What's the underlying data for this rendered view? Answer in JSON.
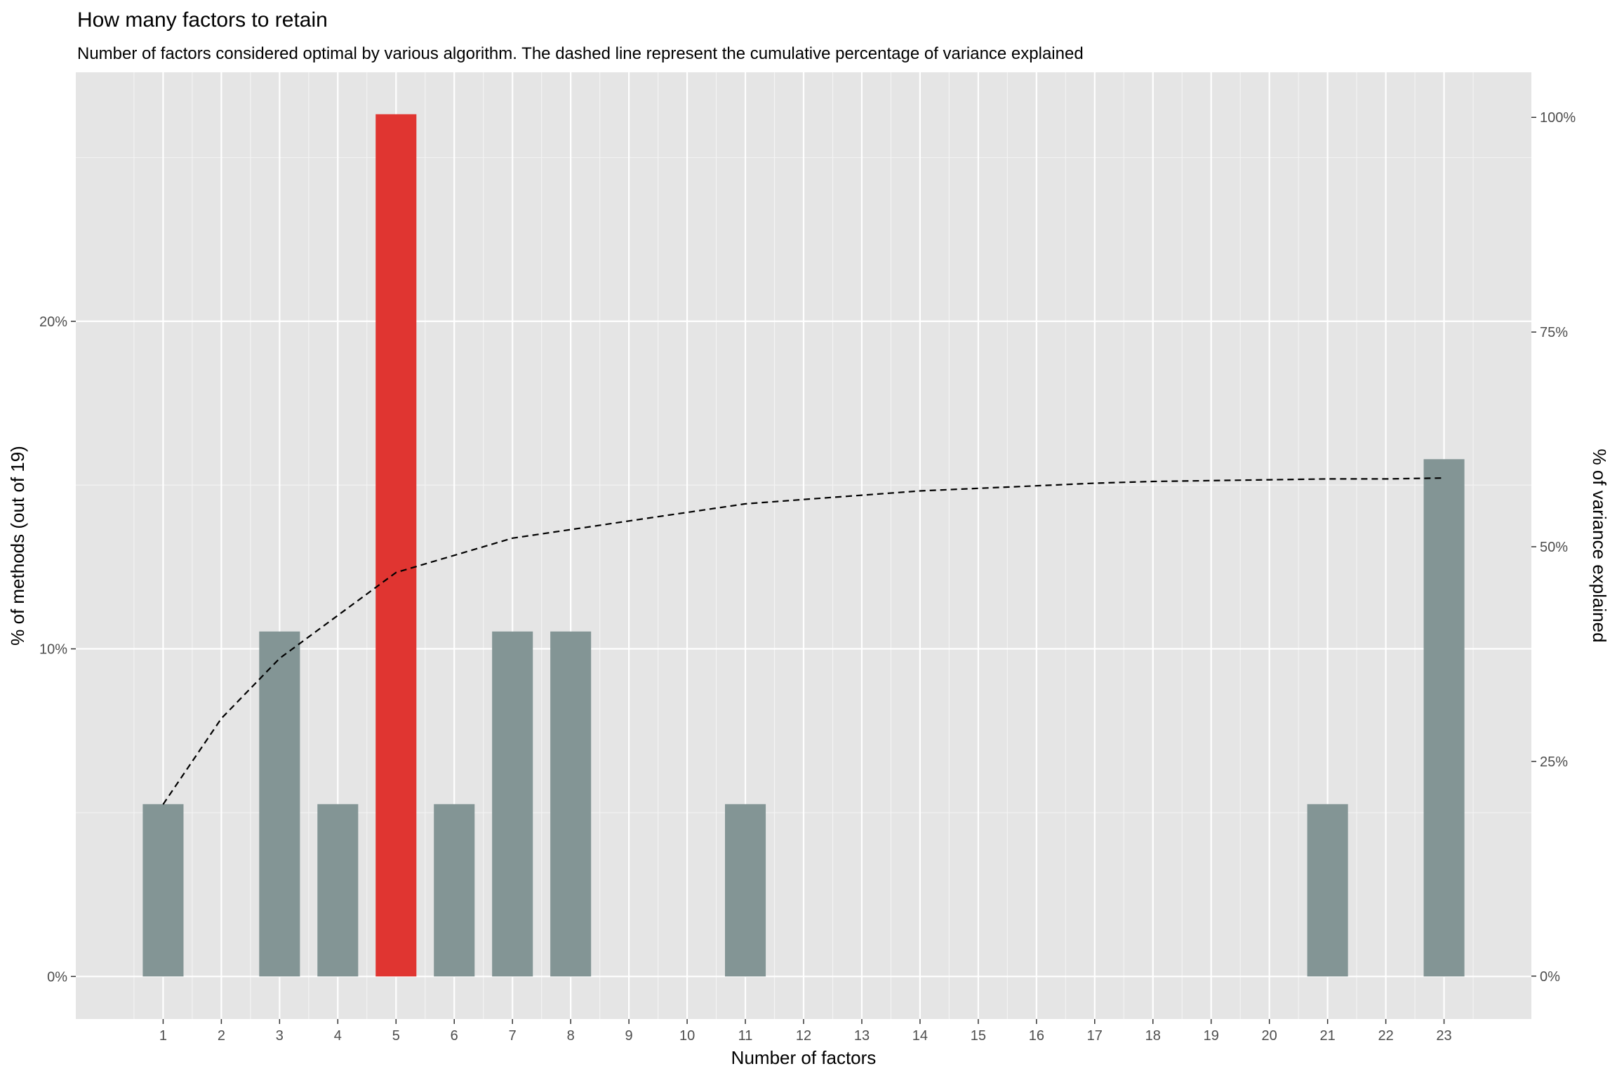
{
  "chart_data": {
    "type": "bar",
    "title": "How many factors to retain",
    "subtitle": "Number of factors considered optimal by various algorithm. The dashed line represent the cumulative percentage of variance explained",
    "xlabel": "Number of factors",
    "ylabel": "% of methods (out of 19)",
    "y2label": "% of variance explained",
    "categories": [
      "1",
      "2",
      "3",
      "4",
      "5",
      "6",
      "7",
      "8",
      "9",
      "10",
      "11",
      "12",
      "13",
      "14",
      "15",
      "16",
      "17",
      "18",
      "19",
      "20",
      "21",
      "22",
      "23"
    ],
    "values": [
      5.26,
      0,
      10.53,
      5.26,
      26.32,
      5.26,
      10.53,
      10.53,
      0,
      0,
      5.26,
      0,
      0,
      0,
      0,
      0,
      0,
      0,
      0,
      0,
      5.26,
      0,
      15.79
    ],
    "highlight_category": "5",
    "highlight_color": "#e03531",
    "bar_color": "#839595",
    "ylim": [
      -1.3,
      27.6
    ],
    "yticks": [
      0,
      10,
      20
    ],
    "ytick_labels": [
      "0%",
      "10%",
      "20%"
    ],
    "y2lim": [
      -0.05,
      1.0525
    ],
    "y2ticks": [
      0,
      0.25,
      0.5,
      0.75,
      1.0
    ],
    "y2tick_labels": [
      "0%",
      "25%",
      "50%",
      "75%",
      "100%"
    ],
    "cumulative_variance": [
      0.2,
      0.3,
      0.37,
      0.42,
      0.47,
      0.49,
      0.51,
      0.52,
      0.53,
      0.54,
      0.55,
      0.555,
      0.56,
      0.565,
      0.568,
      0.571,
      0.574,
      0.576,
      0.577,
      0.578,
      0.579,
      0.579,
      0.58
    ],
    "xlim": [
      -0.5,
      24.5
    ],
    "grid": true,
    "legend": "none"
  }
}
